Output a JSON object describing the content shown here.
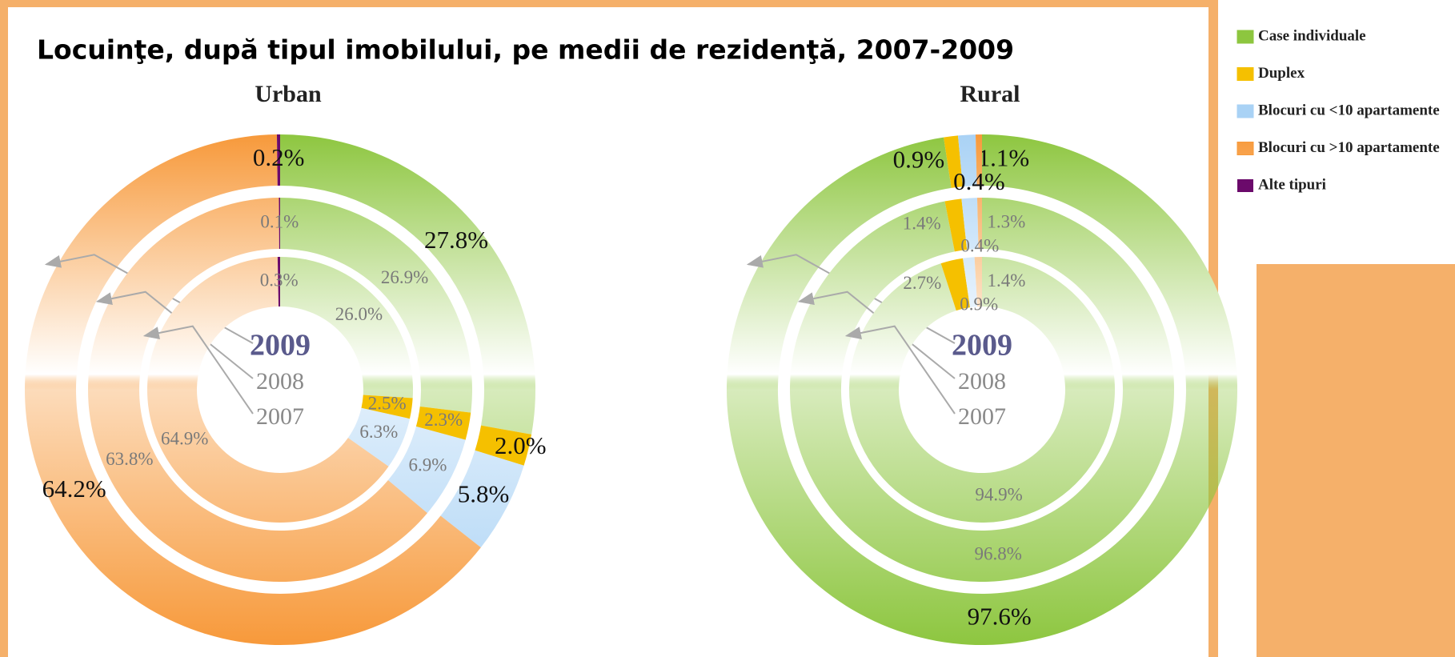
{
  "title": "Locuinţe, după tipul imobilului, pe medii de rezidenţă, 2007-2009",
  "chart_data": [
    {
      "type": "donut",
      "title": "Urban",
      "categories": [
        "Case individuale",
        "Duplex",
        "Blocuri cu <10 apartamente",
        "Blocuri cu >10 apartamente",
        "Alte tipuri"
      ],
      "colors": [
        "#8dc63f",
        "#f5c000",
        "#a9d2f5",
        "#f7993a",
        "#6b0a6b"
      ],
      "series": [
        {
          "name": "2009",
          "values": [
            27.8,
            2.0,
            5.8,
            64.2,
            0.2
          ],
          "value_labels": [
            "27.8%",
            "2.0%",
            "5.8%",
            "64.2%",
            "0.2%"
          ]
        },
        {
          "name": "2008",
          "values": [
            26.9,
            2.3,
            6.9,
            63.8,
            0.1
          ],
          "value_labels": [
            "26.9%",
            "2.3%",
            "6.9%",
            "63.8%",
            "0.1%"
          ]
        },
        {
          "name": "2007",
          "values": [
            26.0,
            2.5,
            6.3,
            64.9,
            0.3
          ],
          "value_labels": [
            "26.0%",
            "2.5%",
            "6.3%",
            "64.9%",
            "0.3%"
          ]
        }
      ]
    },
    {
      "type": "donut",
      "title": "Rural",
      "categories": [
        "Case individuale",
        "Duplex",
        "Blocuri cu <10 apartamente",
        "Blocuri cu >10 apartamente",
        "Alte tipuri"
      ],
      "colors": [
        "#8dc63f",
        "#f5c000",
        "#a9d2f5",
        "#f7993a",
        "#6b0a6b"
      ],
      "series": [
        {
          "name": "2009",
          "values": [
            97.6,
            0.9,
            1.1,
            0.4,
            0
          ],
          "value_labels": [
            "97.6%",
            "0.9%",
            "1.1%",
            "0.4%",
            null
          ]
        },
        {
          "name": "2008",
          "values": [
            96.8,
            1.4,
            1.3,
            0.4,
            0
          ],
          "value_labels": [
            "96.8%",
            "1.4%",
            "1.3%",
            "0.4%",
            null
          ]
        },
        {
          "name": "2007",
          "values": [
            94.9,
            2.7,
            1.4,
            0.9,
            0
          ],
          "value_labels": [
            "94.9%",
            "2.7%",
            "1.4%",
            "0.9%",
            null
          ]
        }
      ]
    }
  ]
}
